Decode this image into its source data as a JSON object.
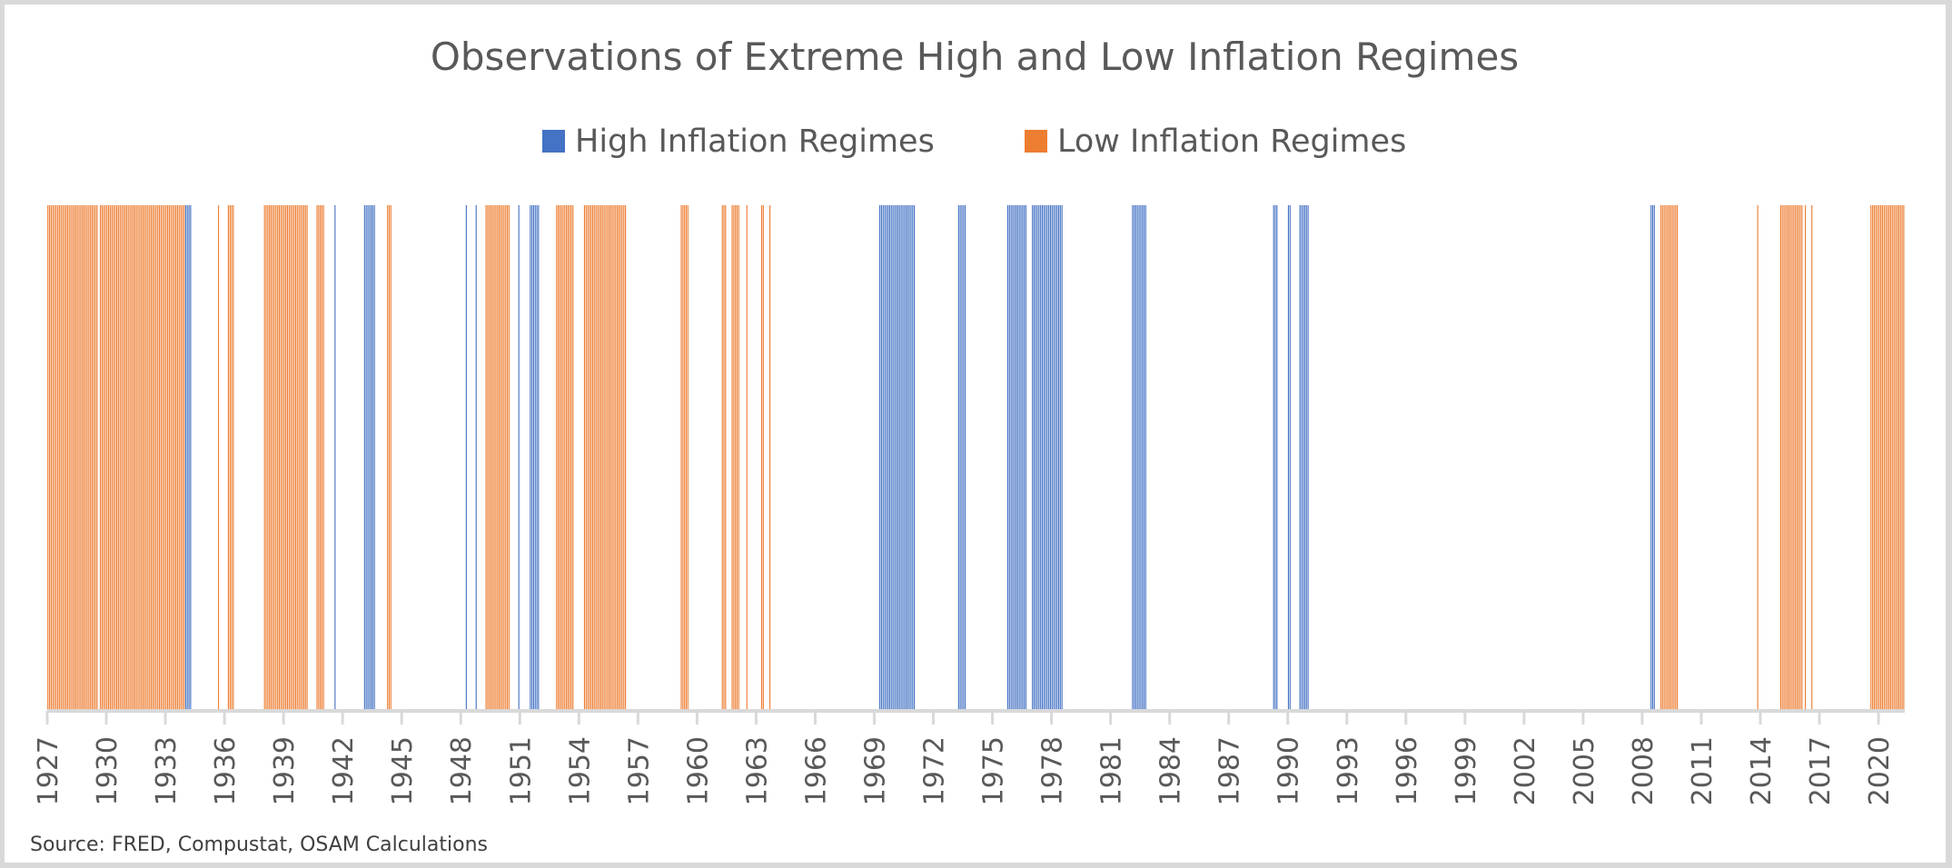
{
  "chart_data": {
    "type": "bar",
    "title": "Observations of Extreme High and Low Inflation Regimes",
    "xlabel": "",
    "ylabel": "",
    "source_note": "Source: FRED, Compustat, OSAM Calculations",
    "frequency": "monthly",
    "x_range": [
      "1927-01",
      "2021-04"
    ],
    "ylim": [
      0,
      1
    ],
    "grid": false,
    "legend_position": "top",
    "series": [
      {
        "name": "High Inflation Regimes",
        "color": "#4472C4"
      },
      {
        "name": "Low Inflation Regimes",
        "color": "#ED7D31"
      }
    ],
    "tick_labels": [
      "1927",
      "1930",
      "1933",
      "1936",
      "1939",
      "1942",
      "1945",
      "1948",
      "1951",
      "1954",
      "1957",
      "1960",
      "1963",
      "1966",
      "1969",
      "1972",
      "1975",
      "1978",
      "1981",
      "1984",
      "1987",
      "1990",
      "1993",
      "1996",
      "1999",
      "2002",
      "2005",
      "2008",
      "2011",
      "2014",
      "2017",
      "2020"
    ],
    "regime_periods": [
      {
        "series": "Low Inflation Regimes",
        "start": "1927-01",
        "end": "1929-07"
      },
      {
        "series": "Low Inflation Regimes",
        "start": "1929-09",
        "end": "1933-12"
      },
      {
        "series": "High Inflation Regimes",
        "start": "1934-01",
        "end": "1934-04"
      },
      {
        "series": "Low Inflation Regimes",
        "start": "1935-09",
        "end": "1935-09"
      },
      {
        "series": "Low Inflation Regimes",
        "start": "1936-03",
        "end": "1936-06"
      },
      {
        "series": "Low Inflation Regimes",
        "start": "1938-01",
        "end": "1940-03"
      },
      {
        "series": "Low Inflation Regimes",
        "start": "1940-09",
        "end": "1941-01"
      },
      {
        "series": "High Inflation Regimes",
        "start": "1941-08",
        "end": "1941-08"
      },
      {
        "series": "High Inflation Regimes",
        "start": "1943-02",
        "end": "1943-08"
      },
      {
        "series": "Low Inflation Regimes",
        "start": "1944-04",
        "end": "1944-06"
      },
      {
        "series": "High Inflation Regimes",
        "start": "1948-04",
        "end": "1948-04"
      },
      {
        "series": "High Inflation Regimes",
        "start": "1948-10",
        "end": "1948-10"
      },
      {
        "series": "Low Inflation Regimes",
        "start": "1949-04",
        "end": "1950-06"
      },
      {
        "series": "High Inflation Regimes",
        "start": "1950-12",
        "end": "1950-12"
      },
      {
        "series": "High Inflation Regimes",
        "start": "1951-07",
        "end": "1951-12"
      },
      {
        "series": "Low Inflation Regimes",
        "start": "1952-11",
        "end": "1953-09"
      },
      {
        "series": "Low Inflation Regimes",
        "start": "1954-04",
        "end": "1956-05"
      },
      {
        "series": "Low Inflation Regimes",
        "start": "1959-03",
        "end": "1959-07"
      },
      {
        "series": "Low Inflation Regimes",
        "start": "1961-04",
        "end": "1961-06"
      },
      {
        "series": "Low Inflation Regimes",
        "start": "1961-10",
        "end": "1962-02"
      },
      {
        "series": "Low Inflation Regimes",
        "start": "1962-07",
        "end": "1962-07"
      },
      {
        "series": "Low Inflation Regimes",
        "start": "1963-04",
        "end": "1963-05"
      },
      {
        "series": "Low Inflation Regimes",
        "start": "1963-09",
        "end": "1963-09"
      },
      {
        "series": "High Inflation Regimes",
        "start": "1969-04",
        "end": "1971-01"
      },
      {
        "series": "High Inflation Regimes",
        "start": "1973-04",
        "end": "1973-08"
      },
      {
        "series": "High Inflation Regimes",
        "start": "1975-10",
        "end": "1976-09"
      },
      {
        "series": "High Inflation Regimes",
        "start": "1977-01",
        "end": "1978-07"
      },
      {
        "series": "High Inflation Regimes",
        "start": "1982-02",
        "end": "1982-10"
      },
      {
        "series": "High Inflation Regimes",
        "start": "1989-04",
        "end": "1989-06"
      },
      {
        "series": "High Inflation Regimes",
        "start": "1990-01",
        "end": "1990-02"
      },
      {
        "series": "High Inflation Regimes",
        "start": "1990-08",
        "end": "1991-01"
      },
      {
        "series": "High Inflation Regimes",
        "start": "2008-06",
        "end": "2008-08"
      },
      {
        "series": "Low Inflation Regimes",
        "start": "2008-12",
        "end": "2009-10"
      },
      {
        "series": "Low Inflation Regimes",
        "start": "2013-11",
        "end": "2013-11"
      },
      {
        "series": "Low Inflation Regimes",
        "start": "2015-01",
        "end": "2016-02"
      },
      {
        "series": "Low Inflation Regimes",
        "start": "2016-04",
        "end": "2016-04"
      },
      {
        "series": "Low Inflation Regimes",
        "start": "2016-08",
        "end": "2016-08"
      },
      {
        "series": "Low Inflation Regimes",
        "start": "2019-08",
        "end": "2021-04"
      }
    ]
  }
}
